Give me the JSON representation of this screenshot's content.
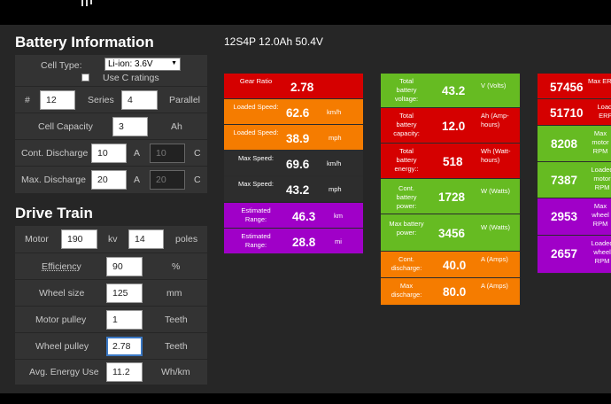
{
  "colors": {
    "red": "#d50000",
    "orange": "#f57c00",
    "dark": "#2d2d2d",
    "purple": "#a000c8",
    "green": "#66bb22"
  },
  "battery": {
    "heading": "Battery Information",
    "cell_type_label": "Cell Type:",
    "cell_type_value": "Li-ion: 3.6V",
    "use_c_ratings_label": "Use C ratings",
    "series_prefix": "#",
    "series_value": "12",
    "series_label": "Series",
    "parallel_value": "4",
    "parallel_label": "Parallel",
    "capacity_label": "Cell Capacity",
    "capacity_value": "3",
    "capacity_unit": "Ah",
    "cont_label": "Cont. Discharge",
    "cont_value": "10",
    "cont_unit": "A",
    "cont_c_value": "10",
    "cont_c_unit": "C",
    "max_label": "Max. Discharge",
    "max_value": "20",
    "max_unit": "A",
    "max_c_value": "20",
    "max_c_unit": "C"
  },
  "drivetrain": {
    "heading": "Drive Train",
    "motor_label": "Motor",
    "motor_kv_value": "190",
    "kv_label": "kv",
    "poles_value": "14",
    "poles_label": "poles",
    "efficiency_label": "Efficiency",
    "efficiency_value": "90",
    "efficiency_unit": "%",
    "wheel_label": "Wheel size",
    "wheel_value": "125",
    "wheel_unit": "mm",
    "motor_pulley_label": "Motor pulley",
    "motor_pulley_value": "1",
    "motor_pulley_unit": "Teeth",
    "wheel_pulley_label": "Wheel pulley",
    "wheel_pulley_value": "2.78",
    "wheel_pulley_unit": "Teeth",
    "energy_label": "Avg. Energy Use",
    "energy_value": "11.2",
    "energy_unit": "Wh/km"
  },
  "summary_title": "12S4P 12.0Ah 50.4V",
  "col1": [
    {
      "label": "Gear Ratio",
      "value": "2.78",
      "unit": "",
      "color": "red"
    },
    {
      "label": "Loaded Speed:",
      "value": "62.6",
      "unit": "km/h",
      "color": "orange"
    },
    {
      "label": "Loaded Speed:",
      "value": "38.9",
      "unit": "mph",
      "color": "orange"
    },
    {
      "label": "Max Speed:",
      "value": "69.6",
      "unit": "km/h",
      "color": "dark"
    },
    {
      "label": "Max Speed:",
      "value": "43.2",
      "unit": "mph",
      "color": "dark"
    },
    {
      "label": "Estimated Range:",
      "value": "46.3",
      "unit": "km",
      "color": "purple"
    },
    {
      "label": "Estimated Range:",
      "value": "28.8",
      "unit": "mi",
      "color": "purple"
    }
  ],
  "col2": [
    {
      "label": "Total battery voltage:",
      "value": "43.2",
      "unit": "V (Volts)",
      "color": "green"
    },
    {
      "label": "Total battery capacity:",
      "value": "12.0",
      "unit": "Ah (Amp-hours)",
      "color": "red"
    },
    {
      "label": "Total battery energy::",
      "value": "518",
      "unit": "Wh (Watt-hours)",
      "color": "red"
    },
    {
      "label": "Cont. battery power:",
      "value": "1728",
      "unit": "W (Watts)",
      "color": "green"
    },
    {
      "label": "Max battery power:",
      "value": "3456",
      "unit": "W (Watts)",
      "color": "green"
    },
    {
      "label": "Cont. discharge:",
      "value": "40.0",
      "unit": "A (Amps)",
      "color": "orange"
    },
    {
      "label": "Max discharge:",
      "value": "80.0",
      "unit": "A (Amps)",
      "color": "orange"
    }
  ],
  "col3": [
    {
      "label": "Max ERPM",
      "value": "57456",
      "color": "red"
    },
    {
      "label": "Loaded ERPM",
      "value": "51710",
      "color": "red"
    },
    {
      "label": "Max motor RPM",
      "value": "8208",
      "color": "green"
    },
    {
      "label": "Loaded motor RPM",
      "value": "7387",
      "color": "green"
    },
    {
      "label": "Max wheel RPM",
      "value": "2953",
      "color": "purple"
    },
    {
      "label": "Loaded wheel RPM",
      "value": "2657",
      "color": "purple"
    }
  ]
}
